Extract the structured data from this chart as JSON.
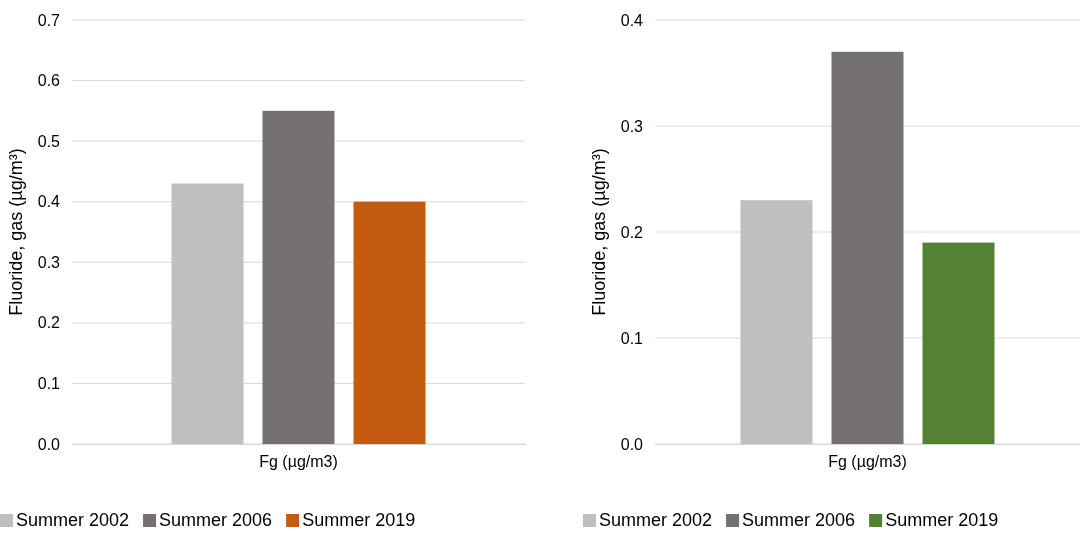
{
  "chart_data": [
    {
      "type": "bar",
      "ylabel": "Fluoride, gas (µg/m³)",
      "categories": [
        "Fg (µg/m3)"
      ],
      "series": [
        {
          "name": "Summer 2002",
          "color": "#bfbfbf",
          "values": [
            0.43
          ]
        },
        {
          "name": "Summer 2006",
          "color": "#767171",
          "values": [
            0.55
          ]
        },
        {
          "name": "Summer 2019",
          "color": "#c55a11",
          "values": [
            0.4
          ]
        }
      ],
      "ylim": [
        0,
        0.7
      ],
      "yticks": [
        {
          "value": 0,
          "label": "0.0"
        },
        {
          "value": 0.1,
          "label": "0.1"
        },
        {
          "value": 0.2,
          "label": "0.2"
        },
        {
          "value": 0.3,
          "label": "0.3"
        },
        {
          "value": 0.4,
          "label": "0.4"
        },
        {
          "value": 0.5,
          "label": "0.5"
        },
        {
          "value": 0.6,
          "label": "0.6"
        },
        {
          "value": 0.7,
          "label": "0.7"
        }
      ],
      "grid": "y",
      "legend": "bottom"
    },
    {
      "type": "bar",
      "ylabel": "Fluoride, gas (µg/m³)",
      "categories": [
        "Fg (µg/m3)"
      ],
      "series": [
        {
          "name": "Summer 2002",
          "color": "#bfbfbf",
          "values": [
            0.23
          ]
        },
        {
          "name": "Summer 2006",
          "color": "#767171",
          "values": [
            0.37
          ]
        },
        {
          "name": "Summer 2019",
          "color": "#548235",
          "values": [
            0.19
          ]
        }
      ],
      "ylim": [
        0,
        0.4
      ],
      "yticks": [
        {
          "value": 0,
          "label": "0.0"
        },
        {
          "value": 0.1,
          "label": "0.1"
        },
        {
          "value": 0.2,
          "label": "0.2"
        },
        {
          "value": 0.3,
          "label": "0.3"
        },
        {
          "value": 0.4,
          "label": "0.4"
        }
      ],
      "grid": "y",
      "legend": "bottom"
    }
  ]
}
